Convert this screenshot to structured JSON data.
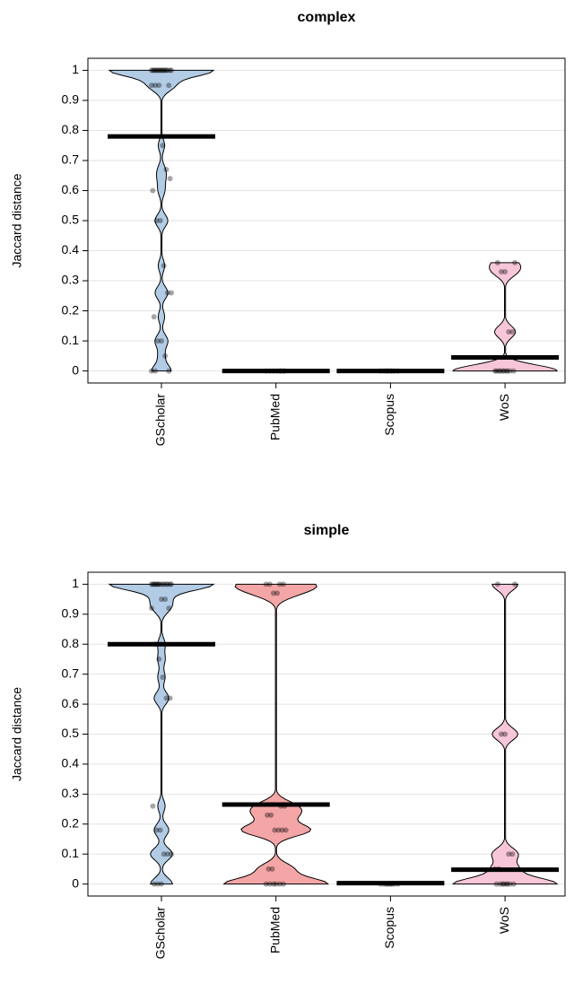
{
  "chart_data": [
    {
      "type": "pirate",
      "title": "complex",
      "y_label": "Jaccard distance",
      "categories": [
        "GScholar",
        "PubMed",
        "Scopus",
        "WoS"
      ],
      "colors": [
        "#b3cce6",
        "#f4a6a6",
        "#d9d9d9",
        "#f7c6d9"
      ],
      "values": [
        0.78,
        0,
        0,
        0.045
      ],
      "points": [
        [
          1,
          1,
          1,
          1,
          1,
          1,
          1,
          1,
          1,
          1,
          1,
          1,
          1,
          1,
          1,
          1,
          0.95,
          0.95,
          0.95,
          0.95,
          0.75,
          0.67,
          0.64,
          0.6,
          0.5,
          0.5,
          0.35,
          0.26,
          0.26,
          0.18,
          0.1,
          0.1,
          0.05,
          0,
          0,
          0
        ],
        [
          0,
          0,
          0,
          0,
          0,
          0,
          0,
          0
        ],
        [
          0,
          0,
          0,
          0,
          0,
          0,
          0,
          0
        ],
        [
          0.36,
          0.36,
          0.33,
          0.33,
          0.13,
          0.13,
          0,
          0,
          0,
          0,
          0,
          0,
          0,
          0,
          0,
          0
        ]
      ],
      "ylim": [
        -0.04,
        1.04
      ],
      "yticks": [
        0,
        0.1,
        0.2,
        0.3,
        0.4,
        0.5,
        0.6,
        0.7,
        0.8,
        0.9,
        1
      ],
      "grid": true
    },
    {
      "type": "pirate",
      "title": "simple",
      "y_label": "Jaccard distance",
      "categories": [
        "GScholar",
        "PubMed",
        "Scopus",
        "WoS"
      ],
      "colors": [
        "#b3cce6",
        "#f4a6a6",
        "#d9d9d9",
        "#f7c6d9"
      ],
      "values": [
        0.8,
        0.265,
        0.003,
        0.048
      ],
      "points": [
        [
          1,
          1,
          1,
          1,
          1,
          1,
          1,
          1,
          1,
          1,
          1,
          1,
          1,
          1,
          0.95,
          0.95,
          0.92,
          0.92,
          0.8,
          0.75,
          0.69,
          0.62,
          0.62,
          0.26,
          0.18,
          0.18,
          0.1,
          0.1,
          0.1,
          0,
          0,
          0
        ],
        [
          1,
          1,
          1,
          1,
          0.97,
          0.97,
          0.26,
          0.26,
          0.23,
          0.23,
          0.18,
          0.18,
          0.18,
          0.18,
          0.05,
          0.05,
          0,
          0,
          0,
          0,
          0,
          0
        ],
        [
          0,
          0,
          0,
          0,
          0,
          0,
          0,
          0
        ],
        [
          1,
          1,
          0.5,
          0.5,
          0.1,
          0.1,
          0.05,
          0.05,
          0,
          0,
          0,
          0,
          0,
          0,
          0,
          0
        ]
      ],
      "ylim": [
        -0.04,
        1.04
      ],
      "yticks": [
        0,
        0.1,
        0.2,
        0.3,
        0.4,
        0.5,
        0.6,
        0.7,
        0.8,
        0.9,
        1
      ],
      "grid": true
    }
  ]
}
